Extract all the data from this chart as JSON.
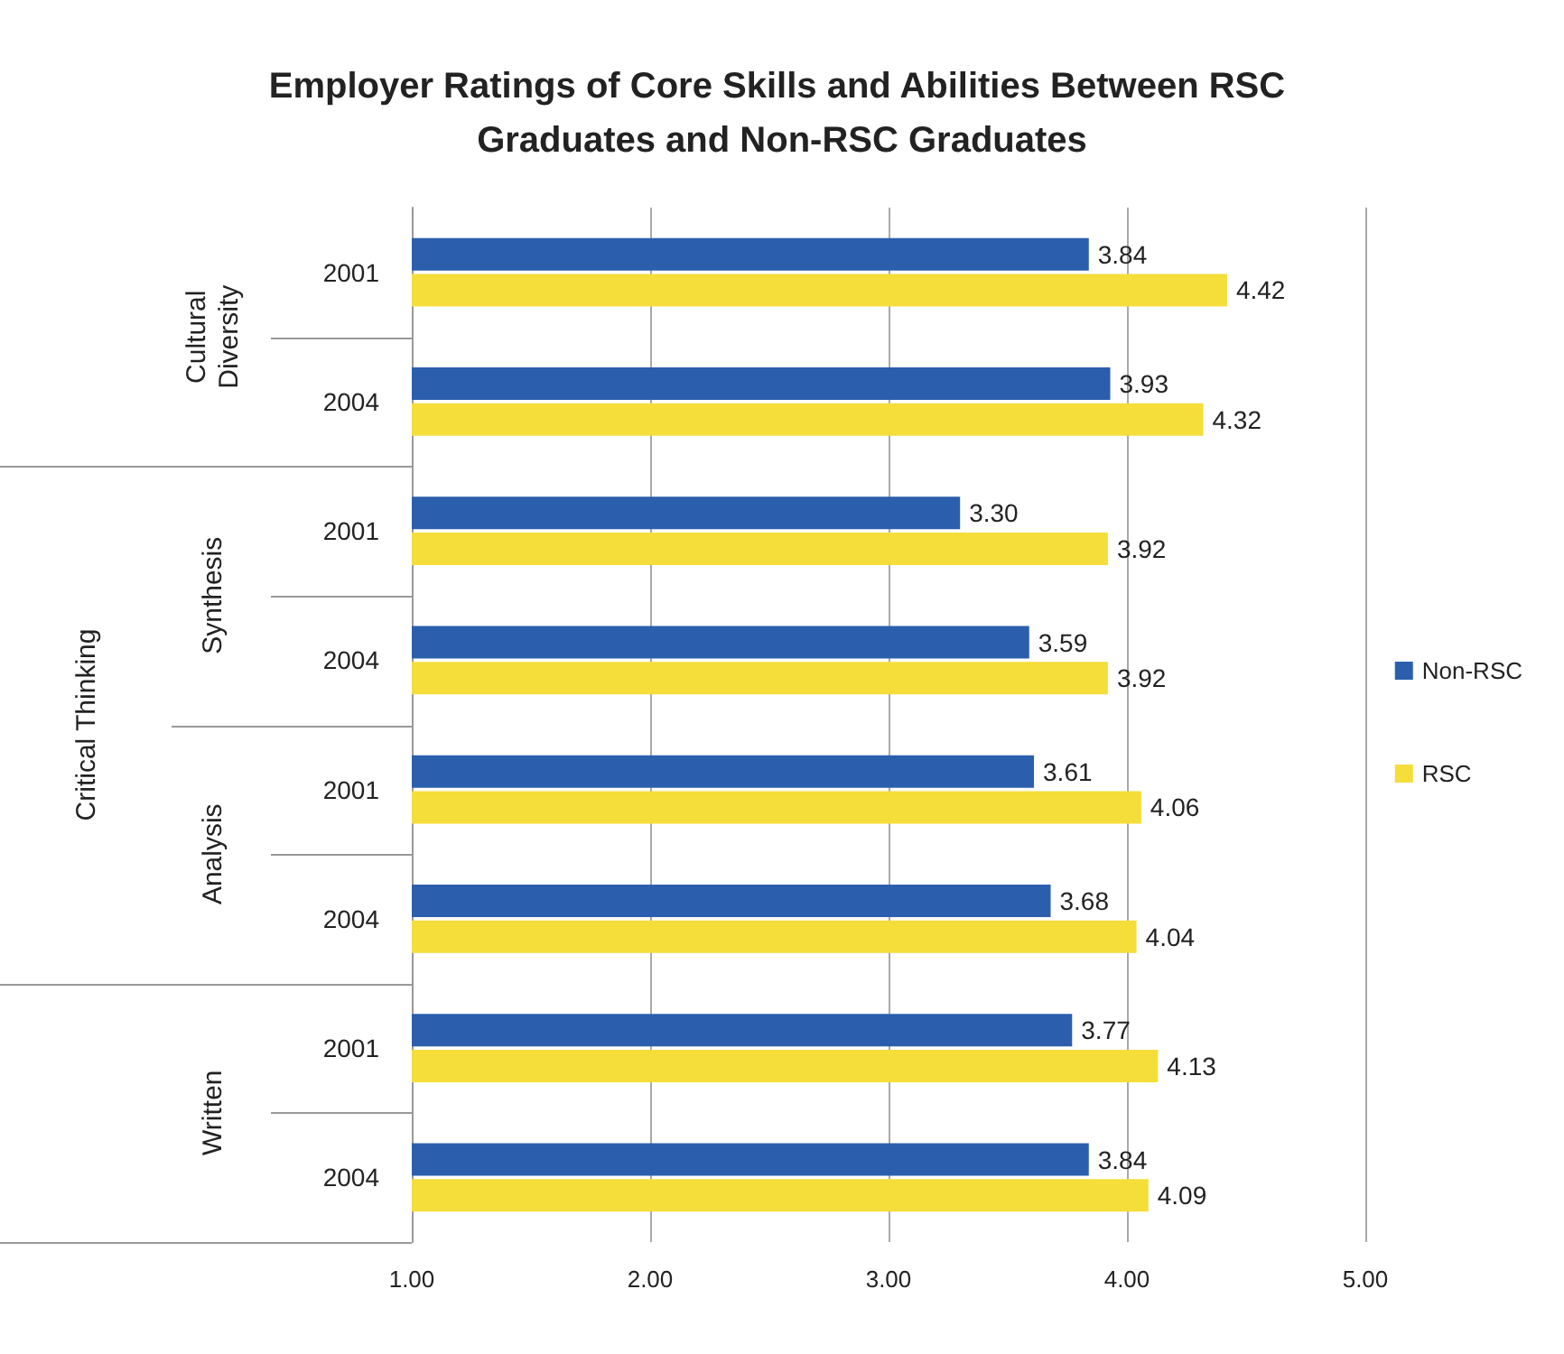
{
  "chart_data": {
    "type": "bar",
    "orientation": "horizontal",
    "title": "Employer Ratings of Core Skills and Abilities Between RSC Graduates and Non-RSC Graduates",
    "categories": [
      "2001",
      "2004",
      "2001",
      "2004",
      "2001",
      "2004",
      "2001",
      "2004"
    ],
    "series": [
      {
        "name": "Non-RSC",
        "color": "#2b5fad",
        "values": [
          3.84,
          3.93,
          3.3,
          3.59,
          3.61,
          3.68,
          3.77,
          3.84
        ],
        "value_labels": [
          "3.84",
          "3.93",
          "3.30",
          "3.59",
          "3.61",
          "3.68",
          "3.77",
          "3.84"
        ]
      },
      {
        "name": "RSC",
        "color": "#f5dd3a",
        "values": [
          4.42,
          4.32,
          3.92,
          3.92,
          4.06,
          4.04,
          4.13,
          4.09
        ],
        "value_labels": [
          "4.42",
          "4.32",
          "3.92",
          "3.92",
          "4.06",
          "4.04",
          "4.13",
          "4.09"
        ]
      }
    ],
    "xlim": [
      1,
      5
    ],
    "xticks": [
      {
        "value": 1,
        "label": "1.00"
      },
      {
        "value": 2,
        "label": "2.00"
      },
      {
        "value": 3,
        "label": "3.00"
      },
      {
        "value": 4,
        "label": "4.00"
      },
      {
        "value": 5,
        "label": "5.00"
      }
    ],
    "annotations": [
      "Cultural Diversity",
      "Synthesis",
      "Analysis",
      "Written",
      "Critical Thinking"
    ],
    "grid": "x",
    "legend": "right"
  }
}
